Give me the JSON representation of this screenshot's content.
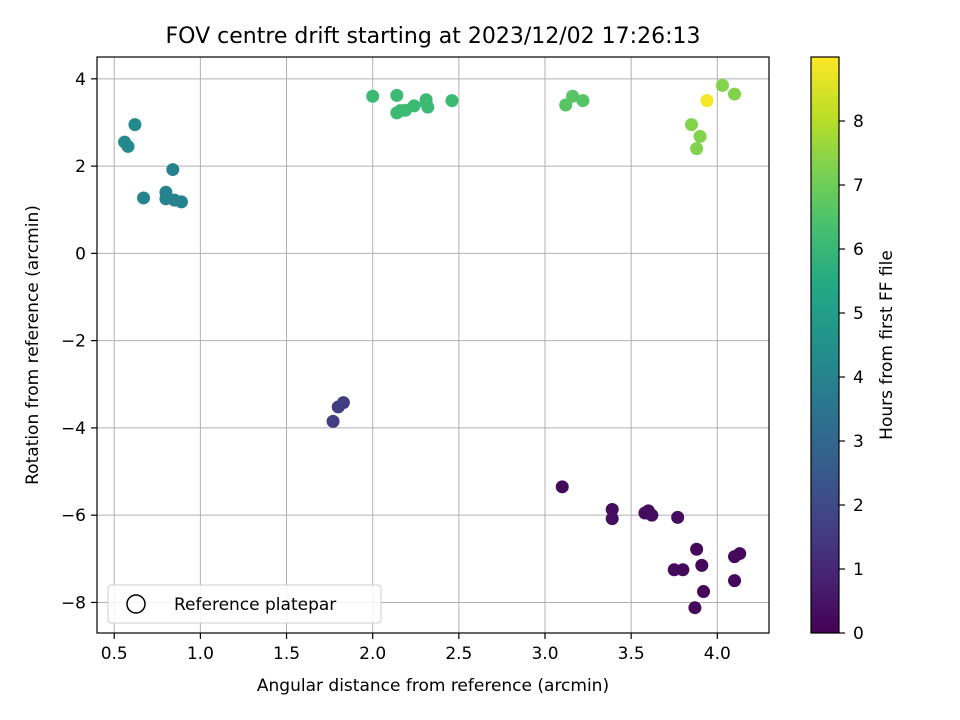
{
  "chart_data": {
    "type": "scatter",
    "title": "FOV centre drift starting at 2023/12/02 17:26:13",
    "xlabel": "Angular distance from reference (arcmin)",
    "ylabel": "Rotation from reference (arcmin)",
    "xlim": [
      0.4,
      4.3
    ],
    "ylim": [
      -8.7,
      4.5
    ],
    "xticks": [
      0.5,
      1.0,
      1.5,
      2.0,
      2.5,
      3.0,
      3.5,
      4.0
    ],
    "xtick_labels": [
      "0.5",
      "1.0",
      "1.5",
      "2.0",
      "2.5",
      "3.0",
      "3.5",
      "4.0"
    ],
    "yticks": [
      4,
      2,
      0,
      -2,
      -4,
      -6,
      -8
    ],
    "ytick_labels": [
      "4",
      "2",
      "0",
      "−2",
      "−4",
      "−6",
      "−8"
    ],
    "grid": true,
    "legend": {
      "position": "lower-left",
      "entries": [
        "Reference platepar"
      ]
    },
    "colorbar": {
      "label": "Hours from first FF file",
      "range": [
        0,
        9
      ],
      "ticks": [
        0,
        1,
        2,
        3,
        4,
        5,
        6,
        7,
        8
      ],
      "tick_labels": [
        "0",
        "1",
        "2",
        "3",
        "4",
        "5",
        "6",
        "7",
        "8"
      ],
      "colormap": "viridis"
    },
    "points": [
      {
        "x": 3.1,
        "y": -5.35,
        "c": 0.2
      },
      {
        "x": 3.39,
        "y": -5.87,
        "c": 0.3
      },
      {
        "x": 3.39,
        "y": -6.08,
        "c": 0.3
      },
      {
        "x": 3.58,
        "y": -5.95,
        "c": 0.3
      },
      {
        "x": 3.6,
        "y": -5.9,
        "c": 0.3
      },
      {
        "x": 3.62,
        "y": -6.0,
        "c": 0.3
      },
      {
        "x": 3.77,
        "y": -6.05,
        "c": 0.3
      },
      {
        "x": 3.75,
        "y": -7.25,
        "c": 0.2
      },
      {
        "x": 3.8,
        "y": -7.25,
        "c": 0.2
      },
      {
        "x": 3.88,
        "y": -6.78,
        "c": 0.2
      },
      {
        "x": 3.91,
        "y": -7.15,
        "c": 0.2
      },
      {
        "x": 3.92,
        "y": -7.75,
        "c": 0.2
      },
      {
        "x": 3.87,
        "y": -8.12,
        "c": 0.2
      },
      {
        "x": 4.1,
        "y": -6.95,
        "c": 0.2
      },
      {
        "x": 4.13,
        "y": -6.88,
        "c": 0.2
      },
      {
        "x": 4.1,
        "y": -7.5,
        "c": 0.2
      },
      {
        "x": 1.77,
        "y": -3.85,
        "c": 1.6
      },
      {
        "x": 1.8,
        "y": -3.52,
        "c": 1.6
      },
      {
        "x": 1.83,
        "y": -3.42,
        "c": 1.6
      },
      {
        "x": 0.56,
        "y": 2.55,
        "c": 4.2
      },
      {
        "x": 0.58,
        "y": 2.45,
        "c": 4.2
      },
      {
        "x": 0.62,
        "y": 2.95,
        "c": 4.2
      },
      {
        "x": 0.84,
        "y": 1.92,
        "c": 4.0
      },
      {
        "x": 0.67,
        "y": 1.27,
        "c": 4.0
      },
      {
        "x": 0.8,
        "y": 1.4,
        "c": 4.0
      },
      {
        "x": 0.8,
        "y": 1.25,
        "c": 4.0
      },
      {
        "x": 0.85,
        "y": 1.22,
        "c": 4.0
      },
      {
        "x": 0.89,
        "y": 1.18,
        "c": 4.0
      },
      {
        "x": 2.0,
        "y": 3.6,
        "c": 6.1
      },
      {
        "x": 2.14,
        "y": 3.62,
        "c": 6.1
      },
      {
        "x": 2.14,
        "y": 3.22,
        "c": 6.1
      },
      {
        "x": 2.16,
        "y": 3.27,
        "c": 6.1
      },
      {
        "x": 2.19,
        "y": 3.28,
        "c": 6.1
      },
      {
        "x": 2.24,
        "y": 3.38,
        "c": 6.1
      },
      {
        "x": 2.31,
        "y": 3.52,
        "c": 6.1
      },
      {
        "x": 2.31,
        "y": 3.45,
        "c": 6.1
      },
      {
        "x": 2.32,
        "y": 3.35,
        "c": 6.1
      },
      {
        "x": 2.46,
        "y": 3.5,
        "c": 6.1
      },
      {
        "x": 3.12,
        "y": 3.4,
        "c": 6.6
      },
      {
        "x": 3.16,
        "y": 3.6,
        "c": 6.6
      },
      {
        "x": 3.22,
        "y": 3.5,
        "c": 6.6
      },
      {
        "x": 3.85,
        "y": 2.95,
        "c": 7.3
      },
      {
        "x": 3.9,
        "y": 2.68,
        "c": 7.3
      },
      {
        "x": 3.88,
        "y": 2.4,
        "c": 7.3
      },
      {
        "x": 4.03,
        "y": 3.85,
        "c": 7.3
      },
      {
        "x": 4.1,
        "y": 3.65,
        "c": 7.3
      },
      {
        "x": 3.94,
        "y": 3.5,
        "c": 8.9
      }
    ]
  }
}
